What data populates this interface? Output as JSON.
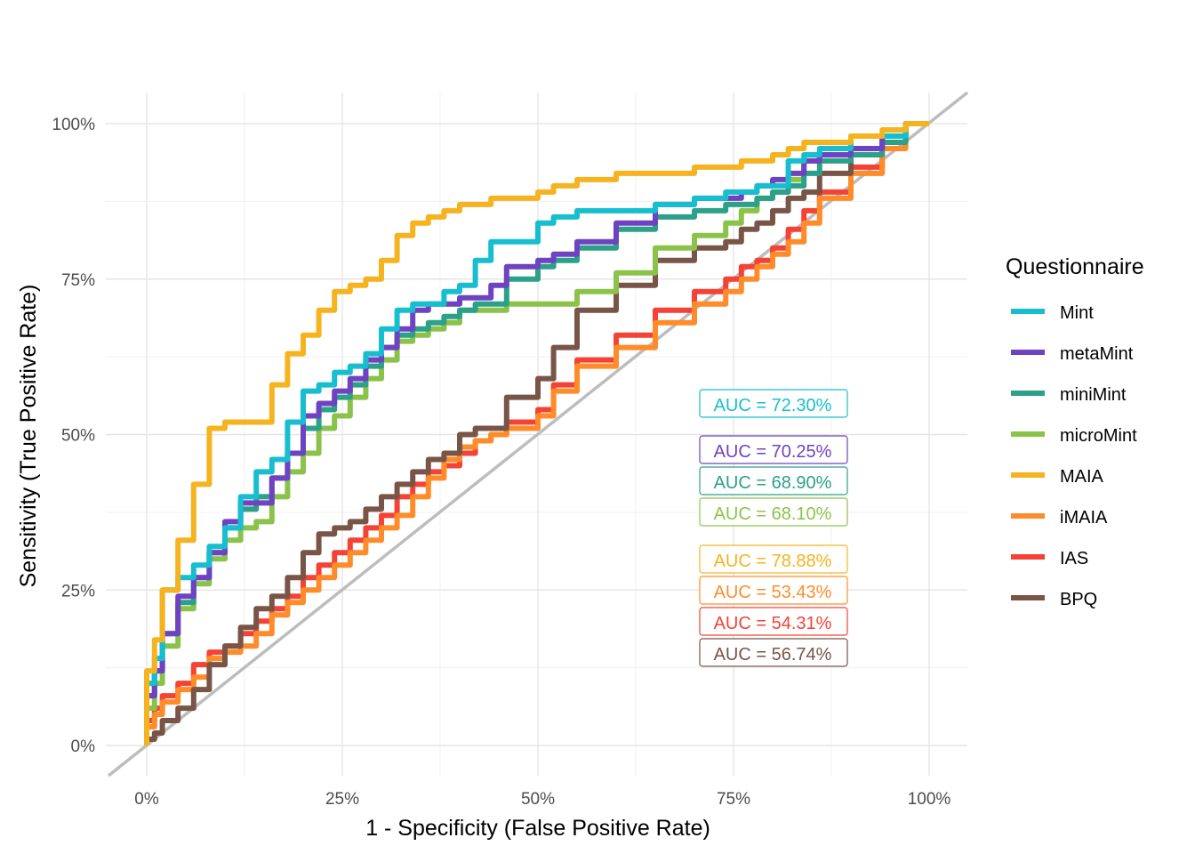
{
  "chart_data": {
    "type": "line",
    "title": "",
    "xlabel": "1 - Specificity (False Positive Rate)",
    "ylabel": "Sensitivity (True Positive Rate)",
    "xlim": [
      0,
      1
    ],
    "ylim": [
      0,
      1
    ],
    "x_ticks": [
      "0%",
      "25%",
      "50%",
      "75%",
      "100%"
    ],
    "y_ticks": [
      "0%",
      "25%",
      "50%",
      "75%",
      "100%"
    ],
    "grid": true,
    "legend": {
      "title": "Questionnaire",
      "position": "right"
    },
    "diagonal_reference": true,
    "series": [
      {
        "name": "Mint",
        "color": "#17BECF",
        "auc": "AUC = 72.30%",
        "x": [
          0,
          0.01,
          0.02,
          0.04,
          0.06,
          0.08,
          0.1,
          0.12,
          0.14,
          0.16,
          0.18,
          0.2,
          0.22,
          0.24,
          0.26,
          0.28,
          0.3,
          0.32,
          0.34,
          0.36,
          0.38,
          0.4,
          0.42,
          0.44,
          0.46,
          0.5,
          0.52,
          0.55,
          0.6,
          0.65,
          0.7,
          0.74,
          0.76,
          0.78,
          0.8,
          0.82,
          0.84,
          0.86,
          0.9,
          0.94,
          0.97,
          1.0
        ],
        "y": [
          0,
          0.1,
          0.14,
          0.25,
          0.27,
          0.29,
          0.32,
          0.35,
          0.4,
          0.44,
          0.46,
          0.52,
          0.57,
          0.58,
          0.6,
          0.61,
          0.63,
          0.67,
          0.7,
          0.71,
          0.71,
          0.73,
          0.74,
          0.78,
          0.81,
          0.81,
          0.84,
          0.85,
          0.86,
          0.86,
          0.87,
          0.88,
          0.89,
          0.89,
          0.9,
          0.9,
          0.94,
          0.95,
          0.96,
          0.98,
          0.98,
          1.0
        ]
      },
      {
        "name": "metaMint",
        "color": "#6F42C1",
        "auc": "AUC = 70.25%",
        "x": [
          0,
          0.01,
          0.02,
          0.04,
          0.06,
          0.08,
          0.1,
          0.12,
          0.14,
          0.16,
          0.18,
          0.2,
          0.22,
          0.24,
          0.26,
          0.28,
          0.3,
          0.32,
          0.34,
          0.36,
          0.38,
          0.4,
          0.42,
          0.44,
          0.46,
          0.5,
          0.52,
          0.55,
          0.6,
          0.65,
          0.7,
          0.74,
          0.76,
          0.78,
          0.8,
          0.82,
          0.84,
          0.86,
          0.9,
          0.94,
          0.97,
          1.0
        ],
        "y": [
          0,
          0.08,
          0.12,
          0.18,
          0.24,
          0.27,
          0.31,
          0.36,
          0.39,
          0.39,
          0.43,
          0.47,
          0.53,
          0.55,
          0.57,
          0.59,
          0.62,
          0.64,
          0.67,
          0.7,
          0.71,
          0.71,
          0.72,
          0.72,
          0.74,
          0.77,
          0.78,
          0.79,
          0.81,
          0.84,
          0.87,
          0.88,
          0.88,
          0.89,
          0.9,
          0.91,
          0.92,
          0.94,
          0.95,
          0.96,
          0.98,
          1.0
        ]
      },
      {
        "name": "miniMint",
        "color": "#2CA089",
        "auc": "AUC = 68.90%",
        "x": [
          0,
          0.01,
          0.02,
          0.04,
          0.06,
          0.08,
          0.1,
          0.12,
          0.14,
          0.16,
          0.18,
          0.2,
          0.22,
          0.24,
          0.26,
          0.28,
          0.3,
          0.32,
          0.34,
          0.36,
          0.38,
          0.4,
          0.42,
          0.44,
          0.46,
          0.5,
          0.52,
          0.55,
          0.6,
          0.65,
          0.7,
          0.74,
          0.76,
          0.78,
          0.8,
          0.82,
          0.84,
          0.86,
          0.9,
          0.94,
          0.97,
          1.0
        ],
        "y": [
          0,
          0.08,
          0.12,
          0.18,
          0.23,
          0.27,
          0.31,
          0.35,
          0.38,
          0.4,
          0.43,
          0.47,
          0.51,
          0.54,
          0.56,
          0.58,
          0.61,
          0.64,
          0.66,
          0.67,
          0.68,
          0.69,
          0.7,
          0.71,
          0.71,
          0.75,
          0.77,
          0.78,
          0.8,
          0.83,
          0.85,
          0.86,
          0.87,
          0.87,
          0.88,
          0.89,
          0.9,
          0.92,
          0.94,
          0.95,
          0.97,
          1.0
        ]
      },
      {
        "name": "microMint",
        "color": "#8BC34A",
        "auc": "AUC = 68.10%",
        "x": [
          0,
          0.01,
          0.02,
          0.04,
          0.06,
          0.08,
          0.1,
          0.12,
          0.14,
          0.16,
          0.18,
          0.2,
          0.22,
          0.24,
          0.26,
          0.28,
          0.3,
          0.32,
          0.34,
          0.36,
          0.38,
          0.4,
          0.42,
          0.44,
          0.46,
          0.5,
          0.52,
          0.55,
          0.6,
          0.65,
          0.7,
          0.74,
          0.76,
          0.78,
          0.8,
          0.82,
          0.84,
          0.86,
          0.9,
          0.94,
          0.97,
          1.0
        ],
        "y": [
          0,
          0.06,
          0.1,
          0.16,
          0.22,
          0.26,
          0.3,
          0.33,
          0.35,
          0.36,
          0.4,
          0.44,
          0.47,
          0.51,
          0.53,
          0.56,
          0.59,
          0.62,
          0.65,
          0.66,
          0.67,
          0.68,
          0.7,
          0.7,
          0.7,
          0.71,
          0.71,
          0.71,
          0.73,
          0.76,
          0.8,
          0.82,
          0.84,
          0.86,
          0.88,
          0.89,
          0.91,
          0.94,
          0.95,
          0.96,
          0.97,
          1.0
        ]
      },
      {
        "name": "MAIA",
        "color": "#F5B320",
        "auc": "AUC = 78.88%",
        "x": [
          0,
          0.01,
          0.02,
          0.04,
          0.06,
          0.08,
          0.1,
          0.12,
          0.14,
          0.16,
          0.18,
          0.2,
          0.22,
          0.24,
          0.26,
          0.28,
          0.3,
          0.32,
          0.34,
          0.36,
          0.38,
          0.4,
          0.42,
          0.44,
          0.46,
          0.5,
          0.52,
          0.55,
          0.6,
          0.65,
          0.7,
          0.74,
          0.76,
          0.78,
          0.8,
          0.82,
          0.84,
          0.86,
          0.9,
          0.94,
          0.97,
          1.0
        ],
        "y": [
          0,
          0.12,
          0.17,
          0.25,
          0.33,
          0.42,
          0.51,
          0.52,
          0.52,
          0.52,
          0.58,
          0.63,
          0.66,
          0.7,
          0.73,
          0.74,
          0.75,
          0.78,
          0.82,
          0.84,
          0.85,
          0.86,
          0.87,
          0.87,
          0.88,
          0.88,
          0.89,
          0.9,
          0.91,
          0.92,
          0.92,
          0.93,
          0.93,
          0.94,
          0.94,
          0.95,
          0.96,
          0.97,
          0.97,
          0.98,
          0.99,
          1.0
        ]
      },
      {
        "name": "iMAIA",
        "color": "#FF8C2A",
        "auc": "AUC = 53.43%",
        "x": [
          0,
          0.01,
          0.02,
          0.04,
          0.06,
          0.08,
          0.1,
          0.12,
          0.14,
          0.16,
          0.18,
          0.2,
          0.22,
          0.24,
          0.26,
          0.28,
          0.3,
          0.32,
          0.34,
          0.36,
          0.38,
          0.4,
          0.42,
          0.44,
          0.46,
          0.5,
          0.52,
          0.55,
          0.6,
          0.65,
          0.7,
          0.74,
          0.76,
          0.78,
          0.8,
          0.82,
          0.84,
          0.86,
          0.9,
          0.94,
          0.97,
          1.0
        ],
        "y": [
          0,
          0.03,
          0.05,
          0.07,
          0.09,
          0.11,
          0.14,
          0.15,
          0.16,
          0.18,
          0.21,
          0.23,
          0.25,
          0.27,
          0.29,
          0.31,
          0.33,
          0.35,
          0.37,
          0.4,
          0.43,
          0.46,
          0.48,
          0.49,
          0.5,
          0.51,
          0.53,
          0.57,
          0.61,
          0.64,
          0.68,
          0.71,
          0.73,
          0.75,
          0.77,
          0.79,
          0.81,
          0.84,
          0.88,
          0.92,
          0.96,
          1.0
        ]
      },
      {
        "name": "IAS",
        "color": "#F44336",
        "auc": "AUC = 54.31%",
        "x": [
          0,
          0.01,
          0.02,
          0.04,
          0.06,
          0.08,
          0.1,
          0.12,
          0.14,
          0.16,
          0.18,
          0.2,
          0.22,
          0.24,
          0.26,
          0.28,
          0.3,
          0.32,
          0.34,
          0.36,
          0.38,
          0.4,
          0.42,
          0.44,
          0.46,
          0.5,
          0.52,
          0.55,
          0.6,
          0.65,
          0.7,
          0.74,
          0.76,
          0.78,
          0.8,
          0.82,
          0.84,
          0.86,
          0.9,
          0.94,
          0.97,
          1.0
        ],
        "y": [
          0,
          0.04,
          0.06,
          0.08,
          0.1,
          0.13,
          0.15,
          0.16,
          0.18,
          0.2,
          0.22,
          0.24,
          0.27,
          0.29,
          0.31,
          0.33,
          0.35,
          0.37,
          0.4,
          0.42,
          0.44,
          0.45,
          0.47,
          0.49,
          0.5,
          0.52,
          0.54,
          0.58,
          0.62,
          0.66,
          0.7,
          0.73,
          0.75,
          0.77,
          0.78,
          0.8,
          0.83,
          0.86,
          0.89,
          0.93,
          0.97,
          1.0
        ]
      },
      {
        "name": "BPQ",
        "color": "#795548",
        "auc": "AUC = 56.74%",
        "x": [
          0,
          0.01,
          0.02,
          0.04,
          0.06,
          0.08,
          0.1,
          0.12,
          0.14,
          0.16,
          0.18,
          0.2,
          0.22,
          0.24,
          0.26,
          0.28,
          0.3,
          0.32,
          0.34,
          0.36,
          0.38,
          0.4,
          0.42,
          0.44,
          0.46,
          0.5,
          0.52,
          0.55,
          0.6,
          0.65,
          0.7,
          0.74,
          0.76,
          0.78,
          0.8,
          0.82,
          0.84,
          0.86,
          0.9,
          0.94,
          0.97,
          1.0
        ],
        "y": [
          0,
          0.01,
          0.02,
          0.04,
          0.06,
          0.09,
          0.13,
          0.16,
          0.19,
          0.22,
          0.24,
          0.27,
          0.31,
          0.34,
          0.35,
          0.36,
          0.38,
          0.4,
          0.42,
          0.44,
          0.46,
          0.47,
          0.5,
          0.51,
          0.51,
          0.56,
          0.59,
          0.64,
          0.7,
          0.74,
          0.78,
          0.8,
          0.81,
          0.83,
          0.84,
          0.86,
          0.88,
          0.89,
          0.92,
          0.96,
          0.98,
          1.0
        ]
      }
    ]
  }
}
